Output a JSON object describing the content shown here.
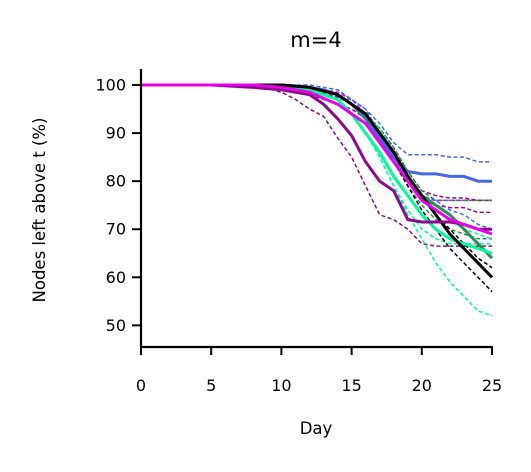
{
  "chart_data": {
    "type": "line",
    "title": "m=4",
    "xlabel": "Day",
    "ylabel": "Nodes left above t (%)",
    "xlim": [
      0,
      25
    ],
    "ylim": [
      45.5,
      103
    ],
    "xticks": [
      0,
      5,
      10,
      15,
      20,
      25
    ],
    "yticks": [
      50,
      60,
      70,
      80,
      90,
      100
    ],
    "grid": false,
    "legend": "none",
    "series": [
      {
        "color": "#e600e6",
        "dashed": true,
        "x": [
          0,
          5,
          8,
          10,
          12,
          14,
          15,
          16,
          17,
          18,
          19,
          20,
          21,
          22,
          23,
          24,
          25
        ],
        "y": [
          100,
          100,
          100,
          100,
          99.5,
          98.5,
          97,
          94,
          90,
          85,
          80,
          76.5,
          76,
          76,
          76,
          76,
          76
        ]
      },
      {
        "color": "#8b0a8b",
        "dashed": true,
        "x": [
          0,
          5,
          8,
          10,
          11,
          12,
          13,
          14,
          15,
          16,
          17,
          18,
          19,
          20,
          21,
          22,
          23,
          24,
          25
        ],
        "y": [
          100,
          100,
          100,
          98.5,
          97,
          95,
          93.5,
          89,
          85,
          79,
          73,
          72,
          70,
          67,
          66.5,
          66.5,
          66.5,
          66.5,
          66.5
        ]
      },
      {
        "color": "#8b0a8b",
        "dashed": true,
        "x": [
          0,
          5,
          8,
          10,
          12,
          14,
          15,
          16,
          17,
          18,
          19,
          20,
          21,
          22,
          23,
          24,
          25
        ],
        "y": [
          100,
          100,
          99.5,
          99,
          98,
          96,
          95,
          93,
          90,
          86,
          81,
          76,
          75,
          74.5,
          74.5,
          73.5,
          73.5
        ]
      },
      {
        "color": "#8b0a8b",
        "dashed": true,
        "x": [
          0,
          5,
          8,
          10,
          12,
          14,
          15,
          16,
          17,
          18,
          19,
          20,
          21,
          22,
          23,
          24,
          25
        ],
        "y": [
          100,
          100,
          99.5,
          99.5,
          99,
          97.5,
          96,
          94,
          91,
          87,
          82,
          78,
          77,
          76.5,
          76.5,
          76,
          76
        ]
      },
      {
        "color": "#4169e1",
        "dashed": true,
        "x": [
          0,
          5,
          9,
          10,
          12,
          13,
          14,
          15,
          16,
          17,
          18,
          19,
          20,
          21,
          22,
          23,
          24,
          25
        ],
        "y": [
          100,
          100,
          100,
          100,
          99,
          98,
          97,
          97,
          95,
          92,
          88,
          85.5,
          85.5,
          85.5,
          85,
          85,
          84,
          84
        ]
      },
      {
        "color": "#2e8b57",
        "dashed": true,
        "x": [
          0,
          5,
          9,
          10,
          12,
          14,
          15,
          16,
          17,
          18,
          19,
          20,
          21,
          22,
          23,
          24,
          25
        ],
        "y": [
          100,
          100,
          100,
          100,
          99.5,
          98,
          96,
          94,
          91,
          87,
          82,
          78,
          76,
          76,
          76,
          76,
          76
        ]
      },
      {
        "color": "#4169e1",
        "dashed": true,
        "x": [
          0,
          5,
          9,
          10,
          12,
          14,
          15,
          16,
          17,
          18,
          19,
          20,
          21,
          22,
          23,
          24,
          25
        ],
        "y": [
          100,
          100,
          100,
          100,
          100,
          99,
          97,
          95,
          90,
          85,
          80,
          77,
          76,
          74,
          73,
          71,
          70
        ]
      },
      {
        "color": "#2e8b57",
        "dashed": true,
        "x": [
          0,
          5,
          9,
          10,
          12,
          14,
          15,
          16,
          17,
          18,
          19,
          20,
          21,
          22,
          23,
          24,
          25
        ],
        "y": [
          100,
          100,
          100,
          100,
          99.5,
          98,
          96,
          93,
          89,
          84,
          79,
          75,
          72,
          70,
          69,
          68,
          68
        ]
      },
      {
        "color": "#00fa9a",
        "dashed": true,
        "x": [
          0,
          5,
          9,
          10,
          12,
          14,
          15,
          16,
          17,
          18,
          19,
          20,
          21,
          22,
          23,
          24,
          25
        ],
        "y": [
          100,
          100,
          100,
          100,
          99,
          97,
          94,
          90,
          85,
          79,
          73,
          68,
          63,
          59,
          56,
          53,
          52
        ]
      },
      {
        "color": "#00fa9a",
        "dashed": true,
        "x": [
          0,
          5,
          9,
          10,
          12,
          14,
          15,
          16,
          17,
          18,
          19,
          20,
          21,
          22,
          23,
          24,
          25
        ],
        "y": [
          100,
          100,
          100,
          100,
          99,
          97,
          94,
          90,
          85,
          79,
          74,
          70,
          68,
          67,
          67,
          67,
          67
        ]
      },
      {
        "color": "#00fa9a",
        "dashed": true,
        "x": [
          0,
          5,
          9,
          10,
          12,
          14,
          15,
          16,
          17,
          18,
          19,
          20,
          21,
          22,
          23,
          24,
          25
        ],
        "y": [
          100,
          100,
          100,
          100,
          99.5,
          98,
          96,
          94,
          91,
          86,
          81,
          77,
          74,
          72,
          70,
          69,
          68
        ]
      },
      {
        "color": "#000000",
        "dashed": true,
        "x": [
          0,
          5,
          9,
          10,
          12,
          14,
          15,
          16,
          17,
          18,
          19,
          20,
          21,
          22,
          23,
          24,
          25
        ],
        "y": [
          100,
          100,
          100,
          100,
          99.5,
          98,
          96,
          93,
          89,
          84,
          79,
          74,
          70,
          66,
          63,
          60,
          57
        ]
      },
      {
        "color": "#000000",
        "dashed": true,
        "x": [
          0,
          5,
          9,
          10,
          12,
          14,
          15,
          16,
          17,
          18,
          19,
          20,
          21,
          22,
          23,
          24,
          25
        ],
        "y": [
          100,
          100,
          100,
          100,
          99.5,
          98,
          96,
          94,
          90,
          86,
          81,
          77,
          73,
          70,
          67,
          64,
          62
        ]
      },
      {
        "color": "#4169e1",
        "dashed": false,
        "x": [
          0,
          5,
          9,
          10,
          12,
          13,
          14,
          15,
          16,
          17,
          18,
          19,
          20,
          21,
          22,
          23,
          24,
          25
        ],
        "y": [
          100,
          100,
          100,
          100,
          99.5,
          99,
          98,
          96,
          93,
          89,
          85,
          82,
          81.5,
          81.5,
          81,
          81,
          80,
          80
        ]
      },
      {
        "color": "#2e8b57",
        "dashed": false,
        "x": [
          0,
          5,
          9,
          10,
          12,
          14,
          15,
          16,
          17,
          18,
          19,
          20,
          21,
          22,
          23,
          24,
          25
        ],
        "y": [
          100,
          100,
          100,
          100,
          99.5,
          98,
          96,
          93.5,
          90,
          86,
          81,
          77,
          75,
          73,
          70,
          67,
          64
        ]
      },
      {
        "color": "#00fa9a",
        "dashed": false,
        "x": [
          0,
          5,
          9,
          10,
          12,
          14,
          15,
          16,
          17,
          18,
          19,
          20,
          21,
          22,
          23,
          24,
          25
        ],
        "y": [
          100,
          100,
          100,
          100,
          99,
          97,
          94,
          90,
          86,
          81,
          77,
          73,
          70,
          68,
          67,
          66,
          65
        ]
      },
      {
        "color": "#000000",
        "dashed": false,
        "x": [
          0,
          5,
          9,
          10,
          12,
          14,
          15,
          16,
          17,
          18,
          19,
          20,
          21,
          22,
          23,
          24,
          25
        ],
        "y": [
          100,
          100,
          100,
          100,
          99.5,
          98,
          96,
          94,
          90,
          86,
          81,
          77,
          73,
          69,
          66,
          63,
          60
        ]
      },
      {
        "color": "#8b0a8b",
        "dashed": false,
        "x": [
          0,
          5,
          8,
          10,
          12,
          13,
          14,
          15,
          16,
          17,
          18,
          19,
          20,
          21,
          22,
          23,
          24,
          25
        ],
        "y": [
          100,
          100,
          99.5,
          99,
          98,
          96,
          93,
          89.5,
          84,
          80,
          78,
          72,
          71.5,
          71.5,
          71.5,
          71,
          70,
          70
        ]
      },
      {
        "color": "#e600e6",
        "dashed": false,
        "x": [
          0,
          5,
          8,
          10,
          12,
          14,
          15,
          16,
          17,
          18,
          19,
          20,
          21,
          22,
          23,
          24,
          25
        ],
        "y": [
          100,
          100,
          100,
          99.5,
          98.5,
          96,
          94,
          92,
          88,
          84,
          80,
          76,
          74,
          72,
          71,
          70,
          69
        ]
      }
    ]
  }
}
